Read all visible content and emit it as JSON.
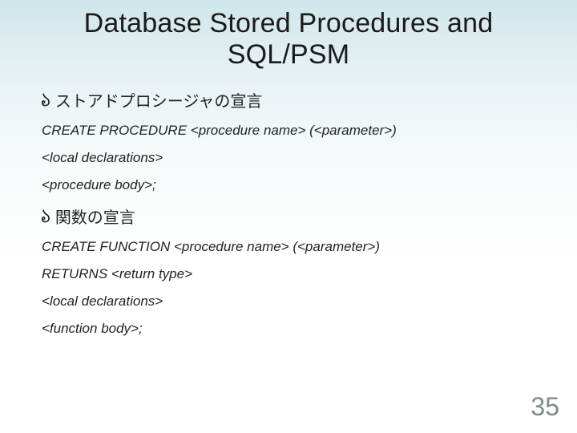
{
  "title": "Database Stored Procedures and SQL/PSM",
  "bullet1": "ストアドプロシージャの宣言",
  "line1": "CREATE PROCEDURE <procedure name> (<parameter>)",
  "line2": "<local declarations>",
  "line3": "<procedure body>;",
  "bullet2": "関数の宣言",
  "line4": "CREATE FUNCTION <procedure name> (<parameter>)",
  "line5": "RETURNS  <return type>",
  "line6": "<local declarations>",
  "line7": "<function body>;",
  "pageNumber": "35"
}
